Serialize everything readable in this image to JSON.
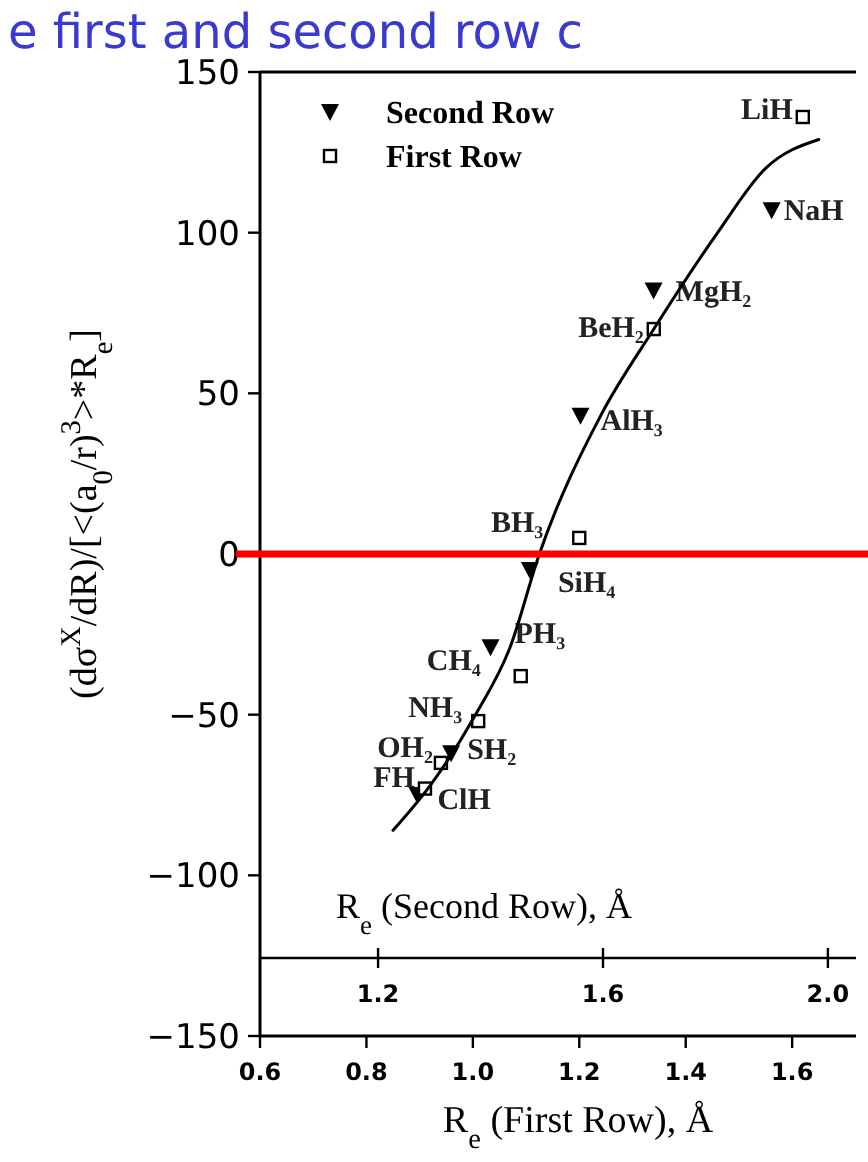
{
  "chart_data": {
    "type": "scatter",
    "title": "e first and second row c",
    "xlabel": "R$_{e}$ (First Row), Å",
    "x2label": "R$_{e}$ (Second Row), Å",
    "ylabel": "(dσ$^{X}$/dR)/[<(a$_{0}$/r)$^{3}$>*R$_{e}$]",
    "xlim": [
      0.6,
      1.72
    ],
    "xticks": [
      0.6,
      {
        "value": 0.8,
        "label": "0.8"
      },
      {
        "value": 1.0,
        "label": "1.0"
      },
      {
        "value": 1.2,
        "label": "1.2"
      },
      {
        "value": 1.4,
        "label": "1.4"
      },
      {
        "value": 1.6,
        "label": "1.6"
      }
    ],
    "x2lim": [
      0.99,
      2.05
    ],
    "x2ticks": [
      {
        "value": 1.2,
        "label": "1.2"
      },
      {
        "value": 1.6,
        "label": "1.6"
      },
      {
        "value": 2.0,
        "label": "2.0"
      }
    ],
    "ylim": [
      -150,
      150
    ],
    "yticks": [
      -150,
      -100,
      -50,
      0,
      50,
      100,
      150
    ],
    "legend": "top left",
    "grid": false,
    "ref_lines": [
      {
        "axis": "y",
        "value": 0,
        "color": "#ff0000"
      }
    ],
    "series": [
      {
        "name": "Second Row",
        "color": "#000000",
        "marker": "triangle",
        "axis": "x2",
        "x": [
          1.9,
          1.69,
          1.56,
          1.47,
          1.4,
          1.33,
          1.27
        ],
        "values": [
          107,
          82,
          43,
          -5,
          -29,
          -62,
          -75
        ],
        "value_labels": [
          "NaH",
          "MgH₂",
          "AlH₃",
          "SiH₄",
          "PH₃",
          "SH₂",
          "ClH"
        ]
      },
      {
        "name": "First Row",
        "color": "#000000",
        "marker": "square",
        "x": [
          1.62,
          1.34,
          1.2,
          1.09,
          1.01,
          0.94,
          0.91
        ],
        "values": [
          136,
          70,
          5,
          -38,
          -52,
          -65,
          -73
        ],
        "value_labels": [
          "LiH",
          "BeH₂",
          "BH₃",
          "CH₄",
          "NH₃",
          "OH₂",
          "FH"
        ]
      },
      {
        "type": "line",
        "color": "#000000",
        "marker": "none",
        "x": [
          0.85,
          0.92,
          1.005,
          1.07,
          1.125,
          1.24,
          1.34,
          1.46,
          1.55,
          1.65
        ],
        "values": [
          -86,
          -72,
          -50,
          -29,
          0,
          43,
          70,
          100,
          120,
          129
        ]
      }
    ]
  }
}
